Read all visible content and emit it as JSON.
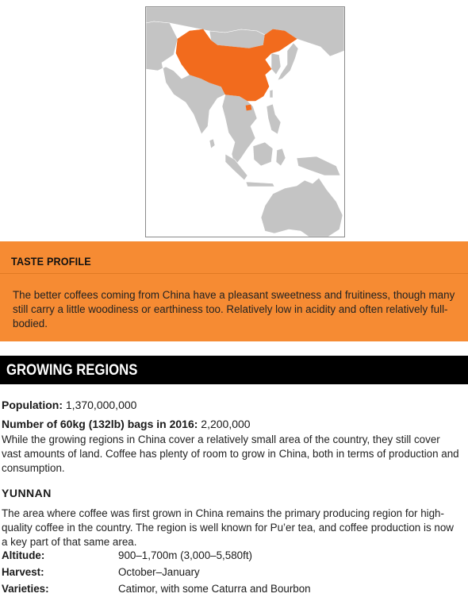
{
  "map": {
    "highlight_color": "#f26b1d",
    "land_color": "#c4c4c4",
    "border_color": "#ffffff"
  },
  "taste_profile": {
    "title": "TASTE PROFILE",
    "text": "The better coffees coming from China have a pleasant sweetness and fruitiness, though many still carry a little woodiness or earthiness too. Relatively low in acidity and often relatively full-bodied."
  },
  "growing_regions": {
    "title": "GROWING REGIONS",
    "population_label": "Population:",
    "population_value": "1,370,000,000",
    "bags_label": "Number of 60kg (132lb) bags in 2016:",
    "bags_value": "2,200,000",
    "intro": "While the growing regions in China cover a relatively small area of the country, they still cover vast amounts of land. Coffee has plenty of room to grow in China, both in terms of production and consumption."
  },
  "yunnan": {
    "title": "YUNNAN",
    "text": "The area where coffee was first grown in China remains the primary producing region for high-quality coffee in the country. The region is well known for Pu’er tea, and coffee production is now a key part of that same area.",
    "facts": [
      {
        "label": "Altitude:",
        "value": "900–1,700m (3,000–5,580ft)"
      },
      {
        "label": "Harvest:",
        "value": "October–January"
      },
      {
        "label": "Varieties:",
        "value": "Catimor, with some Caturra and Bourbon"
      }
    ]
  }
}
